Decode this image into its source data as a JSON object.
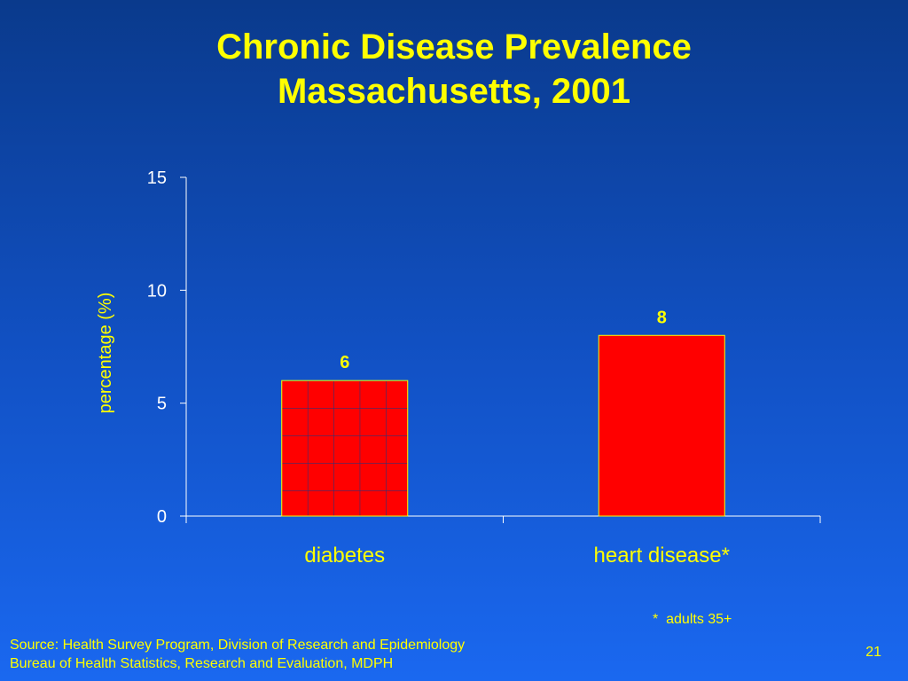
{
  "slide": {
    "title_line1": "Chronic Disease Prevalence",
    "title_line2": "Massachusetts, 2001",
    "footnote": "*  adults 35+",
    "source_line1": "Source: Health Survey Program, Division of Research and Epidemiology",
    "source_line2": "Bureau of Health Statistics, Research and Evaluation, MDPH",
    "page_number": "21"
  },
  "chart_data": {
    "type": "bar",
    "title": "Chronic Disease Prevalence Massachusetts, 2001",
    "xlabel": "",
    "ylabel": "percentage (%)",
    "categories": [
      "diabetes",
      "heart disease*"
    ],
    "values": [
      6,
      8
    ],
    "data_labels": [
      "6",
      "8"
    ],
    "ylim": [
      0,
      15
    ],
    "yticks": [
      0,
      5,
      10,
      15
    ],
    "grid": false,
    "legend": "none",
    "bar_styles": [
      "grid-pattern",
      "solid"
    ],
    "colors": {
      "bar_fill": "#ff0000",
      "bar_border": "#ffff00",
      "axis": "#ffffff",
      "text": "#ffff00",
      "tick_text": "#ffffff"
    }
  }
}
